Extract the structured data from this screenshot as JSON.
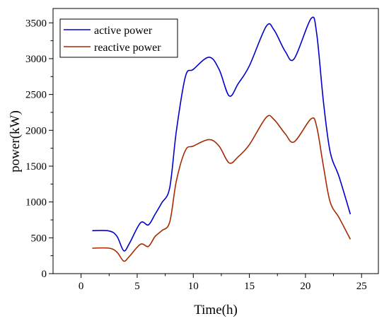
{
  "chart_data": {
    "type": "line",
    "title": "",
    "xlabel": "Time(h)",
    "ylabel": "power(kW)",
    "xlim": [
      -2.5,
      26.5
    ],
    "ylim": [
      0,
      3700
    ],
    "xticks": [
      0,
      5,
      10,
      15,
      20,
      25
    ],
    "yticks": [
      0,
      500,
      1000,
      1500,
      2000,
      2500,
      3000,
      3500
    ],
    "grid": false,
    "legend": "top-left",
    "series": [
      {
        "name": "active power",
        "color": "#0000cc",
        "points": [
          [
            1,
            600
          ],
          [
            2.5,
            595
          ],
          [
            3.2,
            520
          ],
          [
            3.8,
            320
          ],
          [
            4.3,
            420
          ],
          [
            5.3,
            710
          ],
          [
            6.0,
            680
          ],
          [
            6.6,
            830
          ],
          [
            7.2,
            990
          ],
          [
            7.9,
            1200
          ],
          [
            8.5,
            2000
          ],
          [
            9.3,
            2750
          ],
          [
            10.0,
            2850
          ],
          [
            11.4,
            3020
          ],
          [
            12.3,
            2850
          ],
          [
            13.2,
            2480
          ],
          [
            14.0,
            2650
          ],
          [
            15.0,
            2900
          ],
          [
            16.5,
            3450
          ],
          [
            17.2,
            3400
          ],
          [
            18.2,
            3100
          ],
          [
            19.0,
            3000
          ],
          [
            20.5,
            3560
          ],
          [
            21.0,
            3350
          ],
          [
            21.6,
            2400
          ],
          [
            22.2,
            1700
          ],
          [
            23.0,
            1350
          ],
          [
            24.0,
            830
          ]
        ]
      },
      {
        "name": "reactive power",
        "color": "#a52a00",
        "points": [
          [
            1,
            355
          ],
          [
            2.5,
            355
          ],
          [
            3.2,
            300
          ],
          [
            3.8,
            175
          ],
          [
            4.3,
            240
          ],
          [
            5.3,
            410
          ],
          [
            6.0,
            380
          ],
          [
            6.6,
            520
          ],
          [
            7.2,
            600
          ],
          [
            7.9,
            720
          ],
          [
            8.5,
            1300
          ],
          [
            9.3,
            1720
          ],
          [
            10.0,
            1780
          ],
          [
            11.4,
            1870
          ],
          [
            12.3,
            1780
          ],
          [
            13.2,
            1545
          ],
          [
            14.0,
            1630
          ],
          [
            15.0,
            1800
          ],
          [
            16.5,
            2180
          ],
          [
            17.2,
            2150
          ],
          [
            18.2,
            1950
          ],
          [
            19.0,
            1840
          ],
          [
            20.5,
            2160
          ],
          [
            21.0,
            2050
          ],
          [
            21.6,
            1500
          ],
          [
            22.2,
            1000
          ],
          [
            23.0,
            780
          ],
          [
            24.0,
            480
          ]
        ]
      }
    ]
  }
}
